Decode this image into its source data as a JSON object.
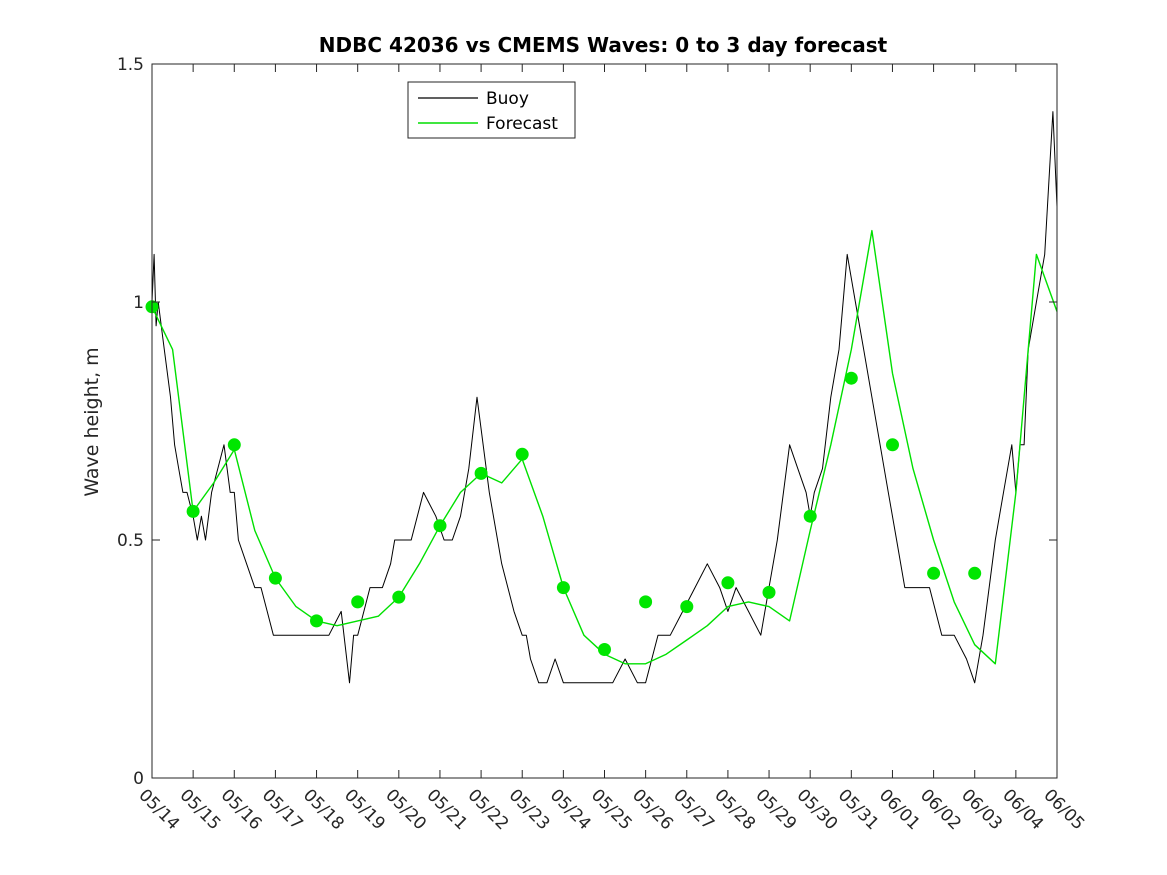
{
  "chart_data": {
    "type": "line",
    "title": "NDBC 42036 vs CMEMS Waves: 0 to 3 day forecast",
    "xlabel": "",
    "ylabel": "Wave height, m",
    "x_tick_labels": [
      "05/14",
      "05/15",
      "05/16",
      "05/17",
      "05/18",
      "05/19",
      "05/20",
      "05/21",
      "05/22",
      "05/23",
      "05/24",
      "05/25",
      "05/26",
      "05/27",
      "05/28",
      "05/29",
      "05/30",
      "05/31",
      "06/01",
      "06/02",
      "06/03",
      "06/04",
      "06/05"
    ],
    "y_ticks": [
      0,
      0.5,
      1,
      1.5
    ],
    "y_tick_labels": [
      "0",
      "0.5",
      "1",
      "1.5"
    ],
    "xlim": [
      0,
      22
    ],
    "ylim": [
      0,
      1.5
    ],
    "legend": {
      "placement": "top-center",
      "entries": [
        {
          "label": "Buoy",
          "color": "#000000"
        },
        {
          "label": "Forecast",
          "color": "#00dd00"
        }
      ]
    },
    "colors": {
      "buoy": "#000000",
      "forecast": "#00e000",
      "marker": "#00e600"
    },
    "series": [
      {
        "name": "Buoy",
        "x": [
          0,
          0.05,
          0.1,
          0.15,
          0.3,
          0.45,
          0.55,
          0.65,
          0.75,
          0.85,
          1.0,
          1.1,
          1.2,
          1.3,
          1.45,
          1.6,
          1.75,
          1.9,
          2.0,
          2.1,
          2.3,
          2.5,
          2.65,
          2.8,
          2.95,
          3.1,
          3.3,
          3.5,
          3.7,
          3.85,
          4.0,
          4.3,
          4.6,
          4.8,
          4.9,
          5.0,
          5.3,
          5.6,
          5.8,
          5.9,
          6.0,
          6.3,
          6.6,
          6.9,
          7.1,
          7.3,
          7.5,
          7.7,
          7.9,
          8.2,
          8.5,
          8.8,
          9.0,
          9.1,
          9.2,
          9.4,
          9.6,
          9.8,
          10.0,
          10.3,
          10.6,
          10.9,
          11.2,
          11.5,
          11.8,
          12.0,
          12.3,
          12.6,
          12.9,
          13.2,
          13.5,
          13.8,
          14.0,
          14.2,
          14.5,
          14.8,
          15.0,
          15.2,
          15.5,
          15.7,
          15.9,
          16.0,
          16.1,
          16.3,
          16.5,
          16.7,
          16.9,
          17.1,
          17.3,
          17.5,
          17.7,
          17.9,
          18.1,
          18.3,
          18.6,
          18.9,
          19.2,
          19.5,
          19.8,
          20.0,
          20.2,
          20.5,
          20.7,
          20.9,
          21.0,
          21.1,
          21.2,
          21.3,
          21.5,
          21.7,
          21.9,
          22.0
        ],
        "y": [
          1.0,
          1.1,
          0.95,
          1.0,
          0.9,
          0.8,
          0.7,
          0.65,
          0.6,
          0.6,
          0.55,
          0.5,
          0.55,
          0.5,
          0.6,
          0.65,
          0.7,
          0.6,
          0.6,
          0.5,
          0.45,
          0.4,
          0.4,
          0.35,
          0.3,
          0.3,
          0.3,
          0.3,
          0.3,
          0.3,
          0.3,
          0.3,
          0.35,
          0.2,
          0.3,
          0.3,
          0.4,
          0.4,
          0.45,
          0.5,
          0.5,
          0.5,
          0.6,
          0.55,
          0.5,
          0.5,
          0.55,
          0.65,
          0.8,
          0.6,
          0.45,
          0.35,
          0.3,
          0.3,
          0.25,
          0.2,
          0.2,
          0.25,
          0.2,
          0.2,
          0.2,
          0.2,
          0.2,
          0.25,
          0.2,
          0.2,
          0.3,
          0.3,
          0.35,
          0.4,
          0.45,
          0.4,
          0.35,
          0.4,
          0.35,
          0.3,
          0.4,
          0.5,
          0.7,
          0.65,
          0.6,
          0.55,
          0.6,
          0.65,
          0.8,
          0.9,
          1.1,
          1.0,
          0.9,
          0.8,
          0.7,
          0.6,
          0.5,
          0.4,
          0.4,
          0.4,
          0.3,
          0.3,
          0.25,
          0.2,
          0.3,
          0.5,
          0.6,
          0.7,
          0.6,
          0.7,
          0.7,
          0.9,
          1.0,
          1.1,
          1.4,
          1.2
        ]
      },
      {
        "name": "Forecast",
        "x": [
          0,
          0.5,
          1.0,
          1.5,
          2.0,
          2.5,
          3.0,
          3.5,
          4.0,
          4.5,
          5.0,
          5.5,
          6.0,
          6.5,
          7.0,
          7.5,
          8.0,
          8.5,
          9.0,
          9.5,
          10.0,
          10.5,
          11.0,
          11.5,
          12.0,
          12.5,
          13.0,
          13.5,
          14.0,
          14.5,
          15.0,
          15.5,
          16.0,
          16.5,
          17.0,
          17.5,
          18.0,
          18.5,
          19.0,
          19.5,
          20.0,
          20.5,
          21.0,
          21.5,
          22.0
        ],
        "y": [
          0.99,
          0.9,
          0.56,
          0.62,
          0.69,
          0.52,
          0.42,
          0.36,
          0.33,
          0.32,
          0.33,
          0.34,
          0.38,
          0.45,
          0.53,
          0.6,
          0.64,
          0.62,
          0.67,
          0.55,
          0.4,
          0.3,
          0.26,
          0.24,
          0.24,
          0.26,
          0.29,
          0.32,
          0.36,
          0.37,
          0.36,
          0.33,
          0.52,
          0.7,
          0.9,
          1.15,
          0.85,
          0.65,
          0.5,
          0.37,
          0.28,
          0.24,
          0.6,
          1.1,
          0.98
        ]
      }
    ],
    "markers": {
      "x": [
        0,
        1,
        2,
        3,
        4,
        5,
        6,
        7,
        8,
        9,
        10,
        11,
        12,
        13,
        14,
        15,
        16,
        17,
        18,
        19,
        20
      ],
      "y": [
        0.99,
        0.56,
        0.7,
        0.42,
        0.33,
        0.37,
        0.38,
        0.53,
        0.64,
        0.68,
        0.4,
        0.27,
        0.37,
        0.36,
        0.41,
        0.39,
        0.55,
        0.84,
        0.7,
        0.43,
        0.43
      ]
    }
  }
}
